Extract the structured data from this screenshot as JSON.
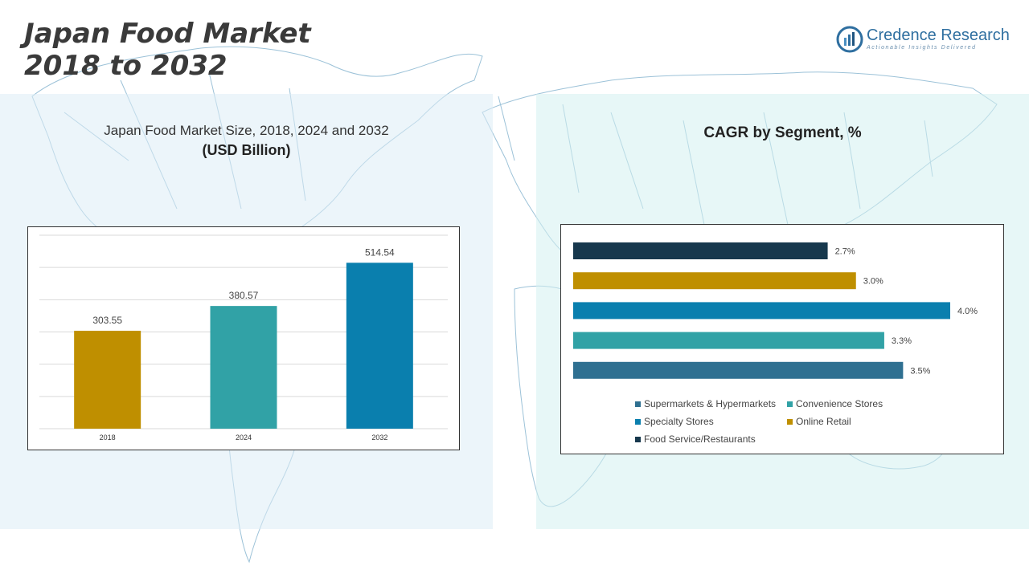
{
  "header": {
    "title_line1": "Japan Food Market",
    "title_line2": "2018 to 2032"
  },
  "logo": {
    "name": "Credence Research",
    "tagline": "Actionable Insights Delivered"
  },
  "left_panel": {
    "subtitle": "Japan Food Market Size, 2018, 2024 and 2032",
    "unit": "(USD Billion)"
  },
  "right_panel": {
    "title": "CAGR by Segment, %"
  },
  "chart_data": [
    {
      "type": "bar",
      "categories": [
        "2018",
        "2024",
        "2032"
      ],
      "values": [
        303.55,
        380.57,
        514.54
      ],
      "value_labels": [
        "303.55",
        "380.57",
        "514.54"
      ],
      "colors": [
        "#bf8f00",
        "#31a2a6",
        "#0a7fae"
      ],
      "ylim": [
        0,
        600
      ],
      "grid": true,
      "title": "Japan Food Market Size, 2018, 2024 and 2032",
      "ylabel": "(USD Billion)"
    },
    {
      "type": "bar",
      "orientation": "horizontal",
      "categories": [
        "Food Service/Restaurants",
        "Online Retail",
        "Specialty Stores",
        "Convenience Stores",
        "Supermarkets & Hypermarkets"
      ],
      "values": [
        2.7,
        3.0,
        4.0,
        3.3,
        3.5
      ],
      "value_labels": [
        "2.7%",
        "3.0%",
        "4.0%",
        "3.3%",
        "3.5%"
      ],
      "colors": [
        "#17384d",
        "#bf8f00",
        "#0a7fae",
        "#31a2a6",
        "#2f7091"
      ],
      "xlim": [
        0,
        4.0
      ],
      "title": "CAGR by Segment, %",
      "legend": {
        "placement": "bottom",
        "items": [
          {
            "label": "Supermarkets & Hypermarkets",
            "color": "#2f7091"
          },
          {
            "label": "Convenience Stores",
            "color": "#31a2a6"
          },
          {
            "label": "Specialty Stores",
            "color": "#0a7fae"
          },
          {
            "label": "Online Retail",
            "color": "#bf8f00"
          },
          {
            "label": "Food Service/Restaurants",
            "color": "#17384d"
          }
        ]
      }
    }
  ]
}
